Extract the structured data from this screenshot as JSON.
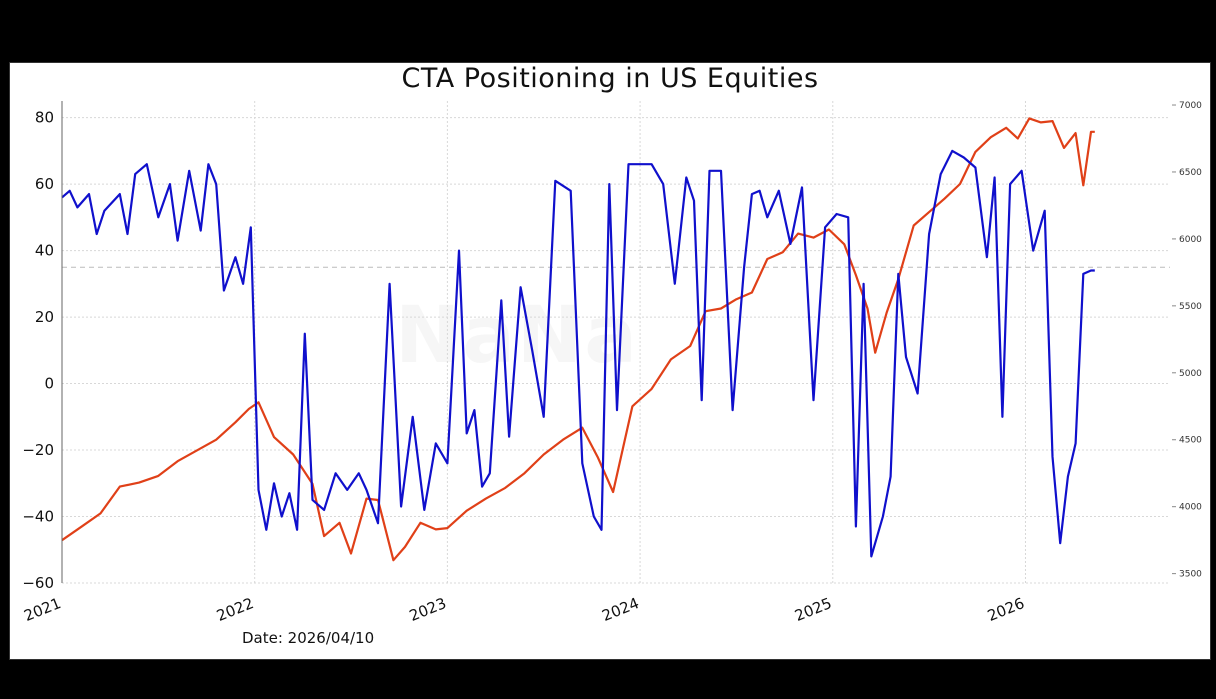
{
  "chart_data": {
    "type": "line",
    "title": "CTA Positioning in US Equities",
    "annotation": "Date: 2026/04/10",
    "watermark": "NaNa",
    "x_ticks": [
      "2021",
      "2022",
      "2023",
      "2024",
      "2025",
      "2026"
    ],
    "y_left": {
      "ylim": [
        -60,
        85
      ],
      "ticks": [
        "80",
        "60",
        "40",
        "20",
        "0",
        "−20",
        "−40",
        "−60"
      ],
      "tick_values": [
        80,
        60,
        40,
        20,
        0,
        -20,
        -40,
        -60
      ]
    },
    "y_right": {
      "ylim": [
        3430,
        7030
      ],
      "ticks": [
        "7000",
        "6500",
        "6000",
        "5500",
        "5000",
        "4500",
        "4000",
        "3500"
      ],
      "tick_values": [
        7000,
        6500,
        6000,
        5500,
        5000,
        4500,
        4000,
        3500
      ]
    },
    "reference_line_left": 35,
    "grid": true,
    "series": [
      {
        "axis": "left",
        "color": "#1010cc",
        "x": [
          2021.0,
          2021.04,
          2021.08,
          2021.14,
          2021.18,
          2021.22,
          2021.3,
          2021.34,
          2021.38,
          2021.44,
          2021.5,
          2021.56,
          2021.6,
          2021.66,
          2021.72,
          2021.76,
          2021.8,
          2021.84,
          2021.9,
          2021.94,
          2021.98,
          2022.02,
          2022.06,
          2022.1,
          2022.14,
          2022.18,
          2022.22,
          2022.26,
          2022.3,
          2022.36,
          2022.42,
          2022.48,
          2022.54,
          2022.58,
          2022.64,
          2022.7,
          2022.76,
          2022.82,
          2022.88,
          2022.94,
          2023.0,
          2023.06,
          2023.1,
          2023.14,
          2023.18,
          2023.22,
          2023.28,
          2023.32,
          2023.38,
          2023.44,
          2023.5,
          2023.56,
          2023.64,
          2023.7,
          2023.76,
          2023.8,
          2023.84,
          2023.88,
          2023.94,
          2024.0,
          2024.06,
          2024.12,
          2024.18,
          2024.24,
          2024.28,
          2024.32,
          2024.36,
          2024.42,
          2024.48,
          2024.54,
          2024.58,
          2024.62,
          2024.66,
          2024.72,
          2024.78,
          2024.84,
          2024.9,
          2024.96,
          2025.02,
          2025.08,
          2025.12,
          2025.16,
          2025.2,
          2025.26,
          2025.3,
          2025.34,
          2025.38,
          2025.44,
          2025.5,
          2025.56,
          2025.62,
          2025.68,
          2025.74,
          2025.8,
          2025.84,
          2025.88,
          2025.92,
          2025.98,
          2026.04,
          2026.1,
          2026.14,
          2026.18,
          2026.22,
          2026.26,
          2026.3,
          2026.34,
          2026.36
        ],
        "values": [
          56,
          58,
          53,
          57,
          45,
          52,
          57,
          45,
          63,
          66,
          50,
          60,
          43,
          64,
          46,
          66,
          60,
          28,
          38,
          30,
          47,
          -32,
          -44,
          -30,
          -40,
          -33,
          -44,
          15,
          -35,
          -38,
          -27,
          -32,
          -27,
          -32,
          -42,
          30,
          -37,
          -10,
          -38,
          -18,
          -24,
          40,
          -15,
          -8,
          -31,
          -27,
          25,
          -16,
          29,
          10,
          -10,
          61,
          58,
          -24,
          -40,
          -44,
          60,
          -8,
          66,
          66,
          66,
          60,
          30,
          62,
          55,
          -5,
          64,
          64,
          -8,
          35,
          57,
          58,
          50,
          58,
          42,
          59,
          -5,
          47,
          51,
          50,
          -43,
          30,
          -52,
          -40,
          -28,
          33,
          8,
          -3,
          45,
          63,
          70,
          68,
          65,
          38,
          62,
          -10,
          60,
          64,
          40,
          52,
          -22,
          -48,
          -28,
          -18,
          33,
          34,
          34
        ],
        "values_note": ""
      },
      {
        "axis": "right",
        "color": "#e04018",
        "x": [
          2021.0,
          2021.1,
          2021.2,
          2021.3,
          2021.4,
          2021.5,
          2021.6,
          2021.7,
          2021.8,
          2021.9,
          2021.97,
          2022.02,
          2022.1,
          2022.2,
          2022.3,
          2022.36,
          2022.44,
          2022.5,
          2022.58,
          2022.64,
          2022.72,
          2022.78,
          2022.86,
          2022.94,
          2023.0,
          2023.1,
          2023.2,
          2023.3,
          2023.4,
          2023.5,
          2023.6,
          2023.7,
          2023.78,
          2023.86,
          2023.96,
          2024.06,
          2024.16,
          2024.26,
          2024.34,
          2024.42,
          2024.5,
          2024.58,
          2024.66,
          2024.74,
          2024.82,
          2024.9,
          2024.98,
          2025.06,
          2025.12,
          2025.18,
          2025.22,
          2025.28,
          2025.34,
          2025.42,
          2025.5,
          2025.58,
          2025.66,
          2025.74,
          2025.82,
          2025.9,
          2025.96,
          2026.02,
          2026.08,
          2026.14,
          2026.2,
          2026.26,
          2026.3,
          2026.34,
          2026.36
        ],
        "values": [
          3750,
          3850,
          3950,
          4150,
          4180,
          4230,
          4340,
          4420,
          4500,
          4630,
          4730,
          4780,
          4520,
          4390,
          4170,
          3780,
          3880,
          3650,
          4060,
          4050,
          3600,
          3700,
          3880,
          3830,
          3840,
          3970,
          4060,
          4140,
          4250,
          4390,
          4500,
          4590,
          4370,
          4110,
          4750,
          4880,
          5100,
          5200,
          5460,
          5480,
          5550,
          5600,
          5850,
          5900,
          6040,
          6010,
          6070,
          5960,
          5730,
          5480,
          5150,
          5450,
          5700,
          6100,
          6200,
          6300,
          6410,
          6650,
          6760,
          6830,
          6750,
          6900,
          6870,
          6880,
          6680,
          6790,
          6400,
          6800,
          6800
        ]
      }
    ]
  }
}
